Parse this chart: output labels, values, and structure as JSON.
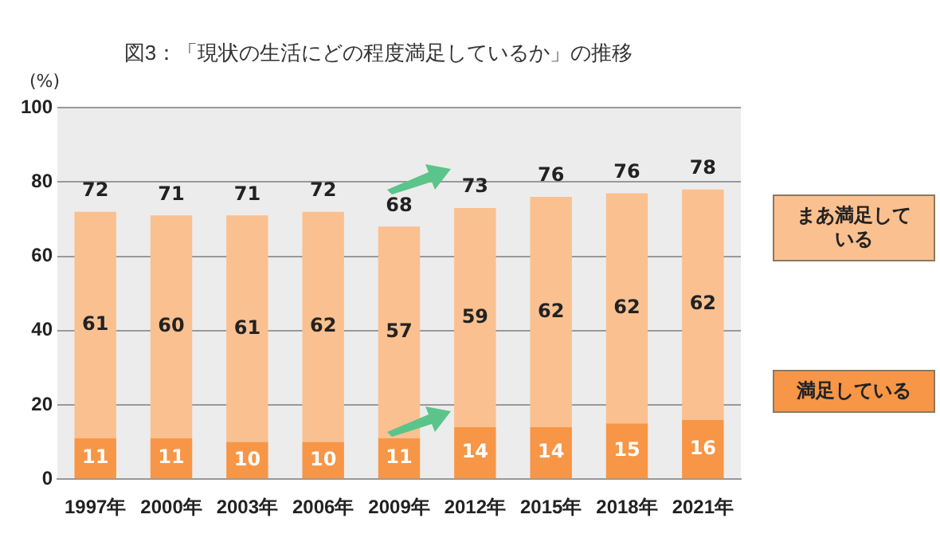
{
  "chart_data": {
    "type": "bar",
    "title": "図3：「現状の生活にどの程度満足しているか」の推移",
    "ylabel": "(%)",
    "categories": [
      "1997年",
      "2000年",
      "2003年",
      "2006年",
      "2009年",
      "2012年",
      "2015年",
      "2018年",
      "2021年"
    ],
    "stacked": true,
    "data_labels": true,
    "legend": "right",
    "grid": "y",
    "ylim": [
      0,
      100
    ],
    "yticks": [
      0,
      20,
      40,
      60,
      80,
      100
    ],
    "series": [
      {
        "name": "満足している",
        "color": "#f79646",
        "values": [
          11,
          11,
          10,
          10,
          11,
          14,
          14,
          15,
          16
        ]
      },
      {
        "name": "まあ満足している",
        "color": "#fac090",
        "values": [
          61,
          60,
          61,
          62,
          57,
          59,
          62,
          62,
          62
        ]
      }
    ],
    "totals": [
      "72",
      "71",
      "71",
      "72",
      "68",
      "73",
      "76",
      "76",
      "78"
    ]
  }
}
